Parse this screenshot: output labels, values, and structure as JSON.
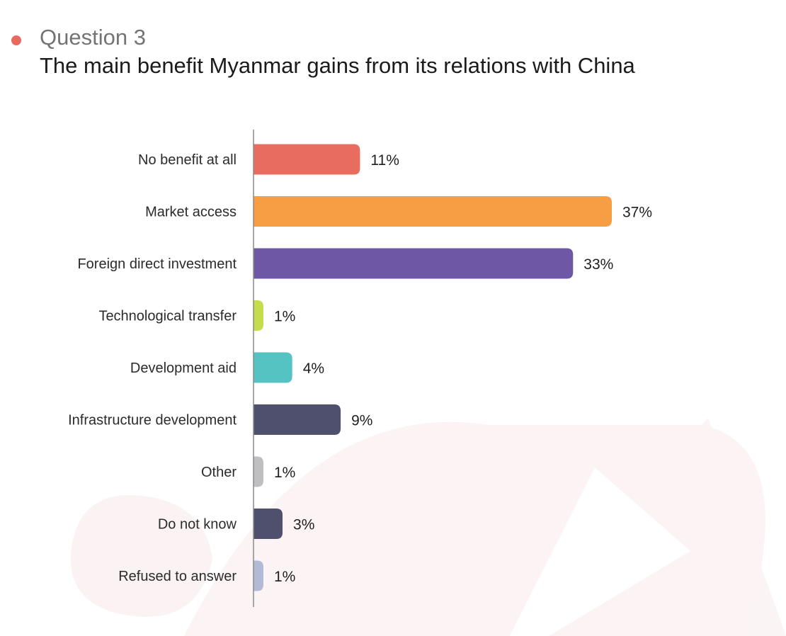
{
  "header": {
    "question_label": "Question 3",
    "title": "The main benefit Myanmar gains from its relations with China",
    "bullet_color": "#e8695e"
  },
  "chart_data": {
    "type": "bar",
    "orientation": "horizontal",
    "title": "The main benefit Myanmar gains from its relations with China",
    "xlabel": "",
    "ylabel": "",
    "unit": "%",
    "xlim": [
      0,
      37
    ],
    "grid": false,
    "legend": "none",
    "categories": [
      "No benefit at all",
      "Market access",
      "Foreign direct investment",
      "Technological transfer",
      "Development aid",
      "Infrastructure development",
      "Other",
      "Do not know",
      "Refused to answer"
    ],
    "values": [
      11,
      37,
      33,
      1,
      4,
      9,
      1,
      3,
      1
    ],
    "value_labels": [
      "11%",
      "37%",
      "33%",
      "1%",
      "4%",
      "9%",
      "1%",
      "3%",
      "1%"
    ],
    "colors": [
      "#e86c5f",
      "#f79d44",
      "#6e58a5",
      "#c5dc4b",
      "#54c3c1",
      "#4e506e",
      "#bfbfc2",
      "#4e506e",
      "#b3bad6"
    ]
  }
}
